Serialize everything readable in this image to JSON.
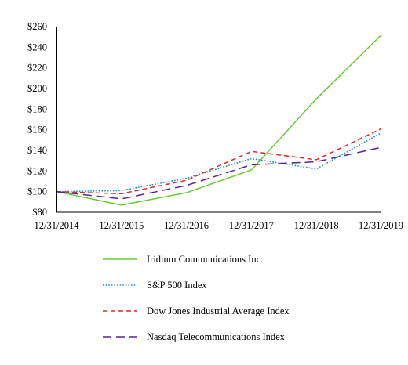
{
  "chart_data": {
    "type": "line",
    "categories": [
      "12/31/2014",
      "12/31/2015",
      "12/31/2016",
      "12/31/2017",
      "12/31/2018",
      "12/31/2019"
    ],
    "ylim": [
      80,
      260
    ],
    "yticks": [
      80,
      100,
      120,
      140,
      160,
      180,
      200,
      220,
      240,
      260
    ],
    "ytick_labels": [
      "$80",
      "$100",
      "$120",
      "$140",
      "$160",
      "$180",
      "$200",
      "$220",
      "$240",
      "$260"
    ],
    "grid": false,
    "legend_position": "bottom",
    "series": [
      {
        "name": "Iridium Communications Inc.",
        "values": [
          100,
          87,
          99,
          121,
          190,
          252
        ],
        "color": "#66cc33",
        "style": "solid"
      },
      {
        "name": "S&P 500 Index",
        "values": [
          100,
          101,
          113,
          132,
          122,
          157
        ],
        "color": "#1e90cc",
        "style": "dotted"
      },
      {
        "name": "Dow Jones Industrial Average Index",
        "values": [
          100,
          98,
          111,
          139,
          131,
          161
        ],
        "color": "#d62b2b",
        "style": "dashed"
      },
      {
        "name": "Nasdaq Telecommunications Index",
        "values": [
          100,
          93,
          106,
          126,
          129,
          143
        ],
        "color": "#552299",
        "style": "longdash"
      }
    ]
  }
}
